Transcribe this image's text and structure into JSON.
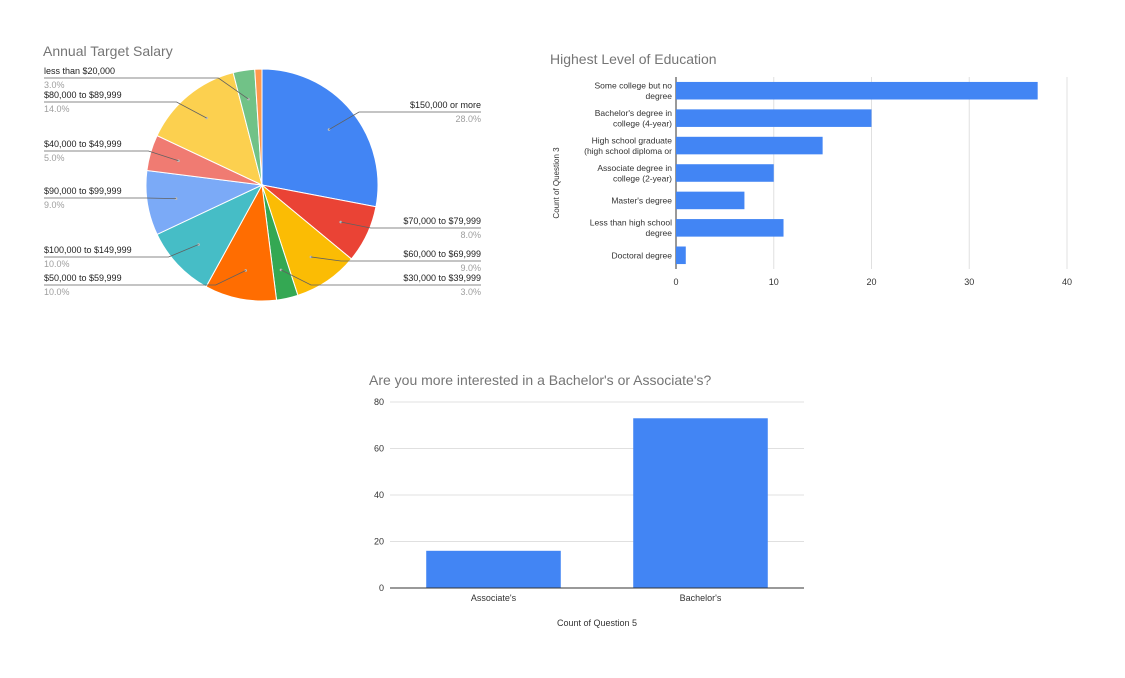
{
  "chart_data": [
    {
      "type": "pie",
      "title": "Annual Target Salary",
      "slices": [
        {
          "label": "$150,000 or more",
          "value": 28.0,
          "pct_label": "28.0%",
          "color": "#4285f4"
        },
        {
          "label": "$70,000 to $79,999",
          "value": 8.0,
          "pct_label": "8.0%",
          "color": "#ea4335"
        },
        {
          "label": "$60,000 to $69,999",
          "value": 9.0,
          "pct_label": "9.0%",
          "color": "#fbbc04"
        },
        {
          "label": "$30,000 to $39,999",
          "value": 3.0,
          "pct_label": "3.0%",
          "color": "#34a853"
        },
        {
          "label": "$50,000 to $59,999",
          "value": 10.0,
          "pct_label": "10.0%",
          "color": "#ff6d01"
        },
        {
          "label": "$100,000 to $149,999",
          "value": 10.0,
          "pct_label": "10.0%",
          "color": "#46bdc6"
        },
        {
          "label": "$90,000 to $99,999",
          "value": 9.0,
          "pct_label": "9.0%",
          "color": "#7baaf7"
        },
        {
          "label": "$40,000 to $49,999",
          "value": 5.0,
          "pct_label": "5.0%",
          "color": "#f07b72"
        },
        {
          "label": "$80,000 to $89,999",
          "value": 14.0,
          "pct_label": "14.0%",
          "color": "#fcd04f"
        },
        {
          "label": "less than $20,000",
          "value": 3.0,
          "pct_label": "3.0%",
          "color": "#71c287"
        },
        {
          "label": "",
          "value": 1.0,
          "pct_label": "",
          "color": "#ff994d"
        }
      ],
      "legend": "labels with leader lines"
    },
    {
      "type": "bar",
      "orientation": "horizontal",
      "title": "Highest Level of Education",
      "ylabel": "Count of Question 3",
      "xlabel": "",
      "categories": [
        [
          "Some college but no",
          "degree"
        ],
        [
          "Bachelor's degree in",
          "college (4-year)"
        ],
        [
          "High school graduate",
          "(high school diploma or"
        ],
        [
          "Associate degree in",
          "college (2-year)"
        ],
        [
          "Master's degree"
        ],
        [
          "Less than high school",
          "degree"
        ],
        [
          "Doctoral degree"
        ]
      ],
      "values": [
        37,
        20,
        15,
        10,
        7,
        11,
        1
      ],
      "xlim": [
        0,
        40
      ],
      "xticks": [
        "0",
        "10",
        "20",
        "30",
        "40"
      ],
      "color": "#4285f4",
      "grid": true
    },
    {
      "type": "bar",
      "title": "Are you more interested in a Bachelor's or Associate's?",
      "xlabel": "Count of Question 5",
      "ylabel": "",
      "categories": [
        "Associate's",
        "Bachelor's"
      ],
      "values": [
        16,
        73
      ],
      "ylim": [
        0,
        80
      ],
      "yticks": [
        "0",
        "20",
        "40",
        "60",
        "80"
      ],
      "color": "#4285f4",
      "grid": true
    }
  ]
}
